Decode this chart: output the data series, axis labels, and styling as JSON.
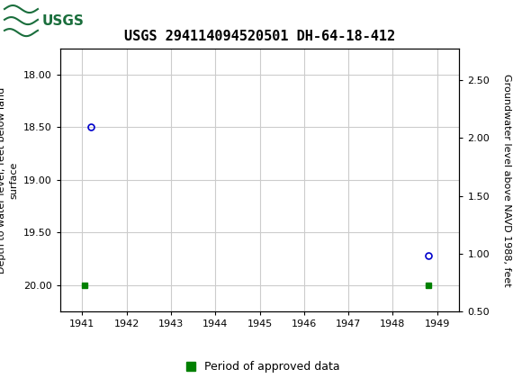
{
  "title": "USGS 294114094520501 DH-64-18-412",
  "header_color": "#1a6e3c",
  "left_ylabel": "Depth to water level, feet below land\nsurface",
  "right_ylabel": "Groundwater level above NAVD 1988, feet",
  "xlim": [
    1940.5,
    1949.5
  ],
  "xticks": [
    1941,
    1942,
    1943,
    1944,
    1945,
    1946,
    1947,
    1948,
    1949
  ],
  "ylim_left": [
    20.25,
    17.75
  ],
  "yticks_left": [
    18.0,
    18.5,
    19.0,
    19.5,
    20.0
  ],
  "ylim_right": [
    0.525,
    2.775
  ],
  "yticks_right": [
    0.5,
    1.0,
    1.5,
    2.0,
    2.5
  ],
  "blue_points_x": [
    1941.2,
    1948.8
  ],
  "blue_points_y": [
    18.5,
    19.72
  ],
  "green_points_x": [
    1941.05,
    1948.8
  ],
  "green_points_y": [
    20.0,
    20.0
  ],
  "point_color": "#0000cc",
  "green_color": "#008000",
  "grid_color": "#cccccc",
  "bg_color": "#ffffff",
  "legend_label": "Period of approved data",
  "title_fontsize": 11,
  "label_fontsize": 8,
  "tick_fontsize": 8
}
